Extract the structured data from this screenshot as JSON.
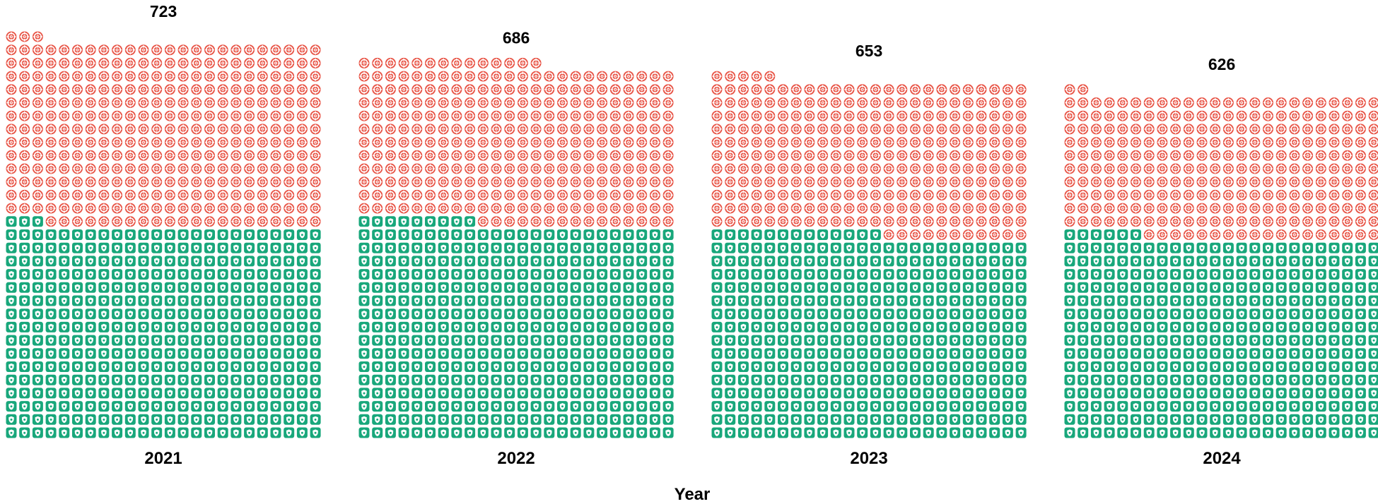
{
  "chart_data": {
    "type": "waffle",
    "title": "",
    "xlabel": "Year",
    "ylabel": "",
    "grid": false,
    "legend": "none",
    "columns_per_group": 24,
    "categories": [
      "2021",
      "2022",
      "2023",
      "2024"
    ],
    "totals": [
      "723",
      "686",
      "653",
      "626"
    ],
    "series": [
      {
        "values": [
          387,
          393,
          373,
          366
        ],
        "icon": "shield-icon",
        "color": "#18a77b"
      },
      {
        "values": [
          336,
          293,
          280,
          260
        ],
        "icon": "target-icon",
        "color": "#e85547"
      }
    ]
  }
}
